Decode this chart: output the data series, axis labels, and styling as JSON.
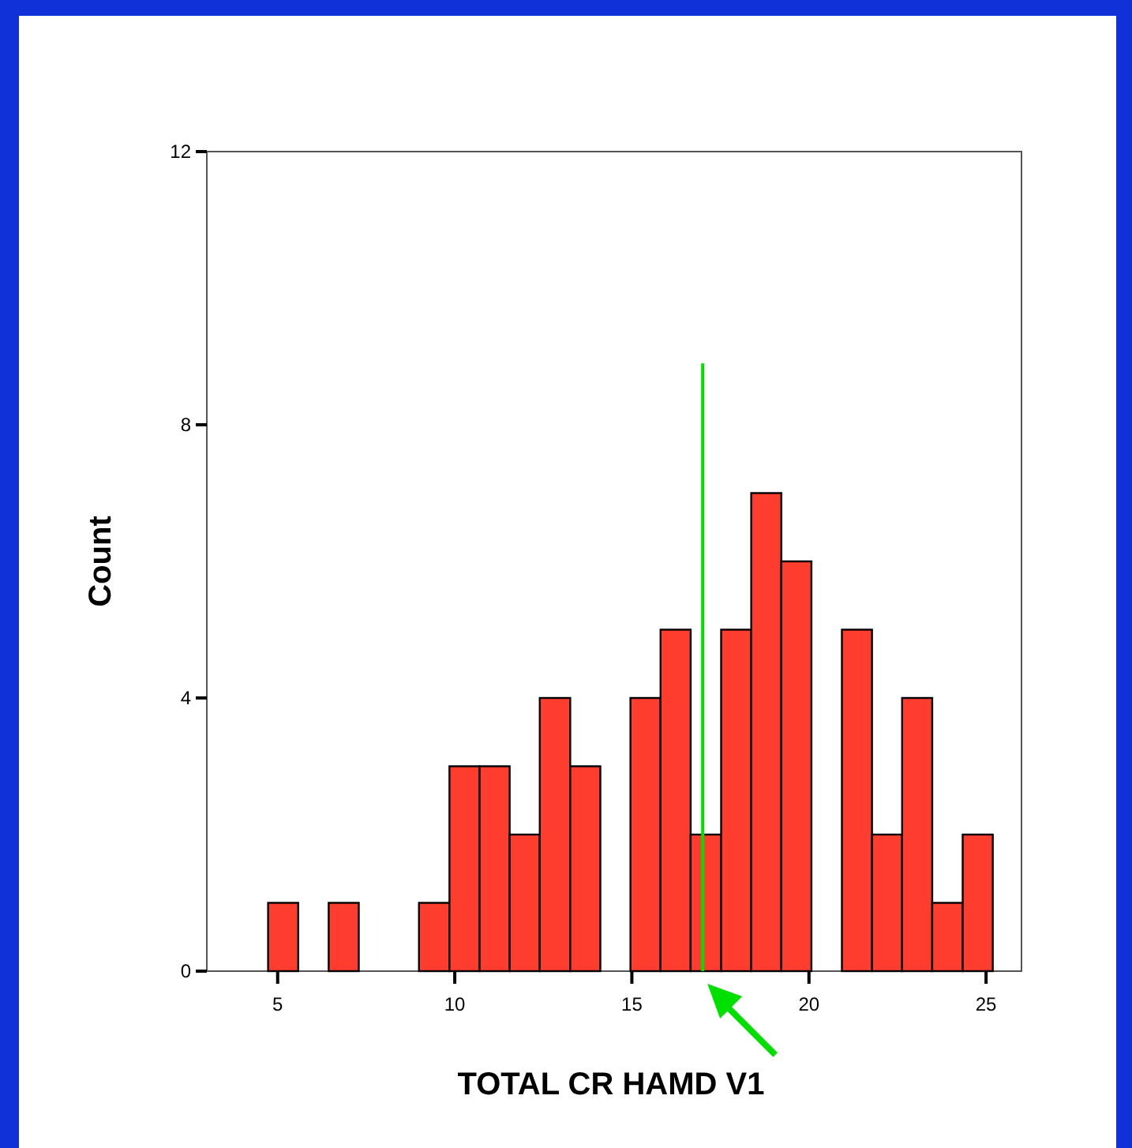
{
  "chart_data": {
    "type": "histogram",
    "xlabel": "TOTAL CR HAMD V1",
    "ylabel": "Count",
    "series": [
      {
        "color": "#ff3d2e",
        "bins": [
          4.73,
          5.58,
          6.44,
          7.29,
          8.14,
          8.99,
          9.85,
          10.7,
          11.55,
          12.4,
          13.26,
          14.11,
          14.96,
          15.81,
          16.66,
          17.52,
          18.37,
          19.22,
          20.07,
          20.93,
          21.78,
          22.63,
          23.48,
          24.34,
          25.19
        ],
        "values": [
          1,
          0,
          1,
          0,
          0,
          1,
          3,
          3,
          2,
          4,
          3,
          0,
          4,
          5,
          2,
          5,
          7,
          6,
          0,
          5,
          2,
          4,
          1,
          2
        ]
      },
      {
        "type": "line",
        "color": "#00e000",
        "x": [
          17,
          17
        ],
        "values": [
          0,
          8.9
        ]
      }
    ],
    "xlim": [
      3,
      26
    ],
    "xticks": [
      5,
      10,
      15,
      20,
      25
    ],
    "ylim": [
      0,
      12
    ],
    "yticks": [
      0,
      4,
      8,
      12
    ],
    "grid": false
  }
}
